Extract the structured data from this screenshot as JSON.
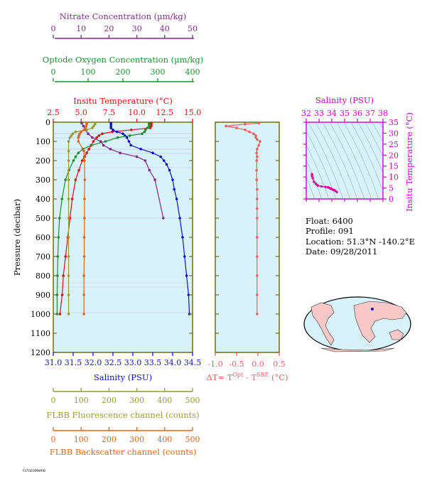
{
  "colors": {
    "nitrate": "#7f2b8a",
    "oxygen": "#1f8f2f",
    "temperature": "#e01010",
    "salinity": "#1010d0",
    "fluorescence": "#9a9a30",
    "backscatter": "#d8681c",
    "delta": "#f06060",
    "ts": "#e0009a",
    "panel_bg": "#d8f2fa",
    "panel_frame": "#7a6a10"
  },
  "chart_data": [
    {
      "type": "line",
      "name_id": "profile-panel",
      "ylabel": "Pressure (decibar)",
      "ylim": [
        1200,
        0
      ],
      "yticks": [
        "0",
        "100",
        "200",
        "300",
        "400",
        "500",
        "600",
        "700",
        "800",
        "900",
        "1000",
        "1100",
        "1200"
      ],
      "axes": {
        "nitrate": {
          "label": "Nitrate Concentration (µm/kg)",
          "range": [
            0,
            50
          ],
          "ticks": [
            "0",
            "10",
            "20",
            "30",
            "40",
            "50"
          ]
        },
        "oxygen": {
          "label": "Optode Oxygen Concentration (µm/kg)",
          "range": [
            0,
            400
          ],
          "ticks": [
            "0",
            "100",
            "200",
            "300",
            "400"
          ]
        },
        "temperature": {
          "label": "Insitu Temperature (°C)",
          "range": [
            2.5,
            15.0
          ],
          "ticks": [
            "2.5",
            "5.0",
            "7.5",
            "10.0",
            "12.5",
            "15.0"
          ]
        },
        "salinity": {
          "label": "Salinity (PSU)",
          "range": [
            31.0,
            34.5
          ],
          "ticks": [
            "31.0",
            "31.5",
            "32.0",
            "32.5",
            "33.0",
            "33.5",
            "34.0",
            "34.5"
          ]
        },
        "fluorescence": {
          "label": "FLBB Fluorescence channel (counts)",
          "range": [
            0,
            500
          ],
          "ticks": [
            "0",
            "100",
            "200",
            "300",
            "400",
            "500"
          ]
        },
        "backscatter": {
          "label": "FLBB Backscatter channel (counts)",
          "range": [
            0,
            500
          ],
          "ticks": [
            "0",
            "100",
            "200",
            "300",
            "400",
            "500"
          ]
        }
      },
      "series": [
        {
          "key": "temperature",
          "pressure": [
            5,
            10,
            20,
            30,
            40,
            50,
            60,
            70,
            80,
            100,
            120,
            140,
            160,
            180,
            200,
            250,
            300,
            400,
            500,
            600,
            700,
            800,
            900,
            1000
          ],
          "values": [
            11.3,
            11.3,
            11.3,
            11.2,
            9.5,
            7.8,
            6.9,
            6.6,
            6.4,
            6.1,
            5.9,
            5.7,
            5.5,
            5.3,
            5.1,
            4.8,
            4.5,
            4.2,
            4.0,
            3.8,
            3.6,
            3.4,
            3.3,
            3.1
          ]
        },
        {
          "key": "salinity",
          "pressure": [
            5,
            10,
            20,
            30,
            40,
            50,
            60,
            70,
            80,
            100,
            120,
            140,
            160,
            180,
            200,
            220,
            250,
            300,
            350,
            400,
            500,
            600,
            700,
            800,
            900,
            1000
          ],
          "values": [
            32.45,
            32.45,
            32.45,
            32.45,
            32.5,
            32.6,
            32.75,
            32.8,
            32.85,
            32.9,
            32.95,
            33.2,
            33.5,
            33.7,
            33.78,
            33.85,
            33.92,
            34.0,
            34.04,
            34.1,
            34.18,
            34.25,
            34.3,
            34.35,
            34.4,
            34.42
          ]
        },
        {
          "key": "oxygen",
          "pressure": [
            5,
            10,
            20,
            30,
            40,
            50,
            60,
            70,
            80,
            100,
            120,
            140,
            160,
            180,
            200,
            250,
            300,
            400,
            500,
            600,
            700,
            800,
            900,
            1000
          ],
          "values": [
            275,
            275,
            275,
            270,
            265,
            262,
            255,
            220,
            185,
            150,
            110,
            85,
            72,
            64,
            58,
            45,
            35,
            25,
            18,
            15,
            13,
            12,
            11,
            11
          ]
        },
        {
          "key": "nitrate",
          "pressure": [
            5,
            20,
            40,
            60,
            80,
            100,
            120,
            140,
            160,
            180,
            200,
            250,
            300,
            500
          ],
          "values": [
            10.2,
            10.8,
            11.5,
            12.5,
            14.0,
            17.0,
            18.0,
            20.5,
            24.0,
            30.0,
            33.0,
            34.5,
            36.5,
            39.5
          ]
        },
        {
          "key": "fluorescence",
          "pressure": [
            5,
            10,
            20,
            30,
            40,
            50,
            60,
            70,
            80,
            100,
            150,
            200,
            300,
            400,
            500,
            600,
            700,
            800,
            900,
            1000
          ],
          "values": [
            150,
            150,
            145,
            140,
            120,
            80,
            70,
            65,
            60,
            55,
            55,
            55,
            55,
            55,
            55,
            55,
            55,
            55,
            55,
            55
          ]
        },
        {
          "key": "backscatter",
          "pressure": [
            5,
            10,
            20,
            30,
            40,
            50,
            60,
            70,
            80,
            100,
            150,
            200,
            300,
            400,
            500,
            600,
            700,
            800,
            900,
            1000
          ],
          "values": [
            120,
            120,
            118,
            115,
            110,
            100,
            95,
            92,
            90,
            90,
            110,
            112,
            113,
            112,
            112,
            111,
            111,
            110,
            110,
            110
          ]
        }
      ]
    },
    {
      "type": "line",
      "name_id": "delta-panel",
      "xlabel": "ΔT= T",
      "xlabel_sup1": "Opt",
      "xlabel_mid": " - T",
      "xlabel_sup2": "SBE",
      "xlabel_end": " (°C)",
      "xlim": [
        -1.0,
        0.5
      ],
      "xticks": [
        "-1.0",
        "-0.5",
        "0.0",
        "0.5"
      ],
      "ylim": [
        1200,
        0
      ],
      "series": [
        {
          "key": "delta",
          "pressure": [
            5,
            10,
            20,
            30,
            40,
            50,
            60,
            70,
            80,
            90,
            100,
            120,
            140,
            160,
            180,
            200,
            250,
            300,
            350,
            400,
            450,
            500,
            600,
            700,
            800,
            900,
            1000
          ],
          "values": [
            0.02,
            -0.3,
            -0.75,
            -0.5,
            -0.3,
            -0.2,
            -0.1,
            -0.05,
            -0.05,
            -0.02,
            0.05,
            0.02,
            -0.02,
            -0.03,
            -0.02,
            -0.03,
            -0.03,
            -0.03,
            -0.02,
            -0.02,
            -0.02,
            -0.02,
            -0.02,
            -0.02,
            -0.02,
            -0.02,
            -0.02
          ]
        }
      ]
    },
    {
      "type": "scatter",
      "name_id": "ts-panel",
      "xlabel": "Salinity (PSU)",
      "ylabel": "Insitu Temperature (°C)",
      "xlim": [
        32,
        38
      ],
      "ylim": [
        0,
        35
      ],
      "xticks": [
        "32",
        "33",
        "34",
        "35",
        "36",
        "37",
        "38"
      ],
      "yticks": [
        "0",
        "5",
        "10",
        "15",
        "20",
        "25",
        "30",
        "35"
      ],
      "series": [
        {
          "key": "ts",
          "x": [
            32.45,
            32.45,
            32.5,
            32.6,
            32.75,
            32.85,
            32.9,
            33.2,
            33.5,
            33.7,
            33.8,
            33.9,
            34.0,
            34.1,
            34.2,
            34.3,
            34.4
          ],
          "y": [
            11.3,
            10.5,
            9.5,
            7.8,
            6.9,
            6.4,
            6.1,
            5.7,
            5.5,
            5.3,
            5.1,
            4.8,
            4.5,
            4.2,
            4.0,
            3.6,
            3.1
          ]
        }
      ]
    }
  ],
  "info": {
    "float": "Float:  6400",
    "profile": "Profile:  091",
    "location": "Location:  51.3°N  -140.2°E",
    "date": "Date:  09/28/2011"
  },
  "footer": {
    "code": "FLTGEOMARID"
  }
}
